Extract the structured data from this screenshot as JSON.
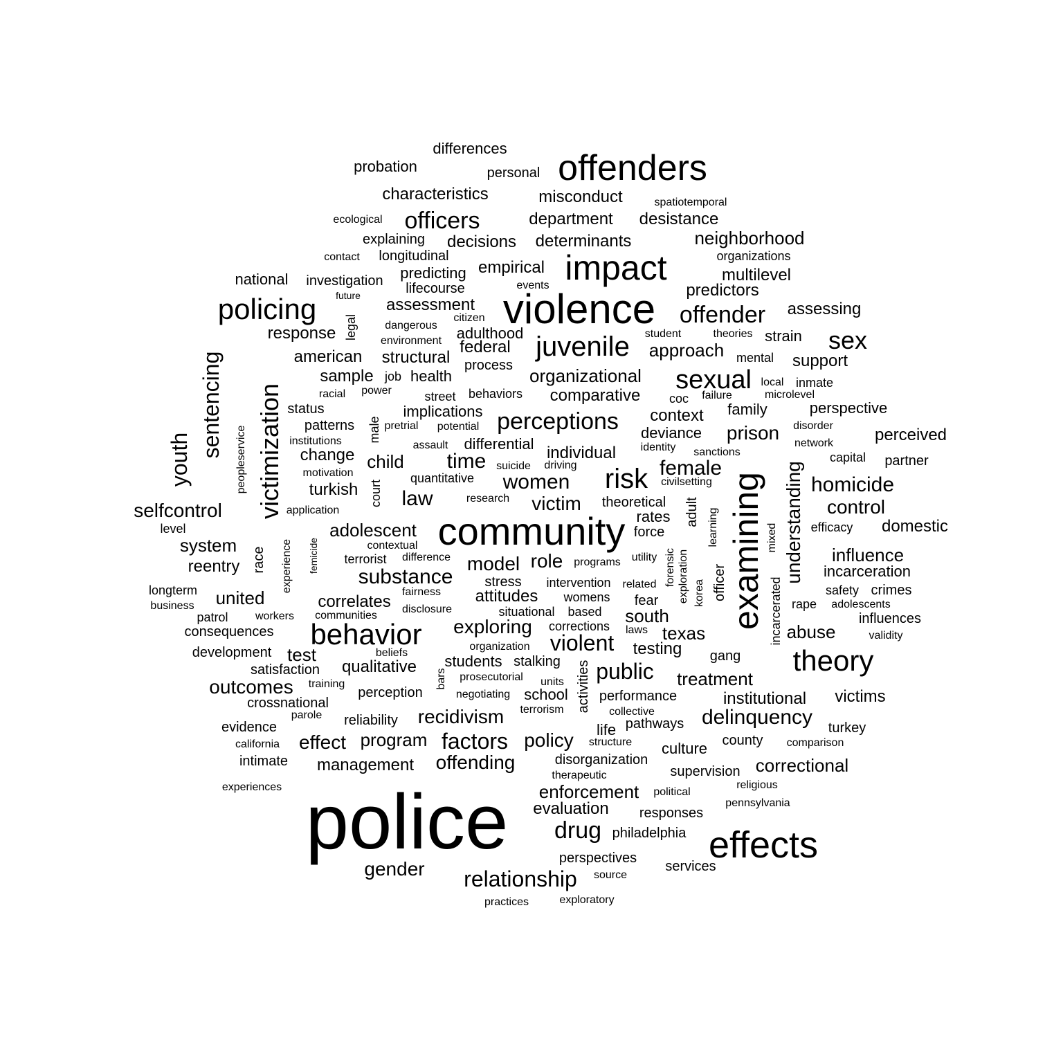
{
  "colors": {
    "background": "#ffffff",
    "text": "#000000"
  },
  "words": [
    {
      "text": "police"
    },
    {
      "text": "community"
    },
    {
      "text": "violence"
    },
    {
      "text": "offenders"
    },
    {
      "text": "examining"
    },
    {
      "text": "effects"
    },
    {
      "text": "impact"
    },
    {
      "text": "behavior"
    },
    {
      "text": "policing"
    },
    {
      "text": "theory"
    },
    {
      "text": "juvenile"
    },
    {
      "text": "victimization"
    },
    {
      "text": "sexual"
    },
    {
      "text": "risk"
    },
    {
      "text": "perceptions"
    },
    {
      "text": "officers"
    },
    {
      "text": "offender"
    },
    {
      "text": "sentencing"
    },
    {
      "text": "youth"
    },
    {
      "text": "sex"
    },
    {
      "text": "factors"
    },
    {
      "text": "drug"
    },
    {
      "text": "relationship"
    },
    {
      "text": "understanding"
    },
    {
      "text": "substance"
    },
    {
      "text": "homicide"
    },
    {
      "text": "delinquency"
    },
    {
      "text": "violent"
    },
    {
      "text": "public"
    },
    {
      "text": "recidivism"
    },
    {
      "text": "policy"
    },
    {
      "text": "offending"
    },
    {
      "text": "exploring"
    },
    {
      "text": "outcomes"
    },
    {
      "text": "model"
    },
    {
      "text": "women"
    },
    {
      "text": "female"
    },
    {
      "text": "prison"
    },
    {
      "text": "law"
    },
    {
      "text": "time"
    },
    {
      "text": "role"
    },
    {
      "text": "enforcement"
    },
    {
      "text": "control"
    },
    {
      "text": "influence"
    },
    {
      "text": "gender"
    },
    {
      "text": "treatment"
    },
    {
      "text": "selfcontrol"
    },
    {
      "text": "adolescent"
    },
    {
      "text": "victim"
    },
    {
      "text": "characteristics"
    },
    {
      "text": "misconduct"
    },
    {
      "text": "department"
    },
    {
      "text": "desistance"
    },
    {
      "text": "neighborhood"
    },
    {
      "text": "decisions"
    },
    {
      "text": "determinants"
    },
    {
      "text": "organizational"
    },
    {
      "text": "comparative"
    },
    {
      "text": "approach"
    },
    {
      "text": "texas"
    },
    {
      "text": "institutional"
    },
    {
      "text": "correctional"
    },
    {
      "text": "victims"
    },
    {
      "text": "abuse"
    },
    {
      "text": "south"
    },
    {
      "text": "individual"
    },
    {
      "text": "assessment"
    },
    {
      "text": "empirical"
    },
    {
      "text": "multilevel"
    },
    {
      "text": "predictors"
    },
    {
      "text": "assessing"
    },
    {
      "text": "strain"
    },
    {
      "text": "support"
    },
    {
      "text": "structural"
    },
    {
      "text": "american"
    },
    {
      "text": "sample"
    },
    {
      "text": "federal"
    },
    {
      "text": "response"
    },
    {
      "text": "system"
    },
    {
      "text": "reentry"
    },
    {
      "text": "united"
    },
    {
      "text": "correlates"
    },
    {
      "text": "attitudes"
    },
    {
      "text": "management"
    },
    {
      "text": "program"
    },
    {
      "text": "effect"
    },
    {
      "text": "evaluation"
    },
    {
      "text": "qualitative"
    },
    {
      "text": "test"
    },
    {
      "text": "testing"
    },
    {
      "text": "child"
    },
    {
      "text": "turkish"
    },
    {
      "text": "change"
    },
    {
      "text": "domestic"
    },
    {
      "text": "perceived"
    },
    {
      "text": "incarceration"
    },
    {
      "text": "context"
    },
    {
      "text": "deviance"
    },
    {
      "text": "family"
    },
    {
      "text": "perspective"
    },
    {
      "text": "differential"
    },
    {
      "text": "implications"
    },
    {
      "text": "health"
    },
    {
      "text": "adulthood"
    },
    {
      "text": "process"
    },
    {
      "text": "predicting"
    },
    {
      "text": "lifecourse"
    },
    {
      "text": "longitudinal"
    },
    {
      "text": "explaining"
    },
    {
      "text": "investigation"
    },
    {
      "text": "national"
    },
    {
      "text": "differences"
    },
    {
      "text": "probation"
    },
    {
      "text": "personal"
    },
    {
      "text": "culture"
    },
    {
      "text": "county"
    },
    {
      "text": "supervision"
    },
    {
      "text": "disorganization"
    },
    {
      "text": "students"
    },
    {
      "text": "perception"
    },
    {
      "text": "crossnational"
    },
    {
      "text": "reliability"
    },
    {
      "text": "evidence"
    },
    {
      "text": "consequences"
    },
    {
      "text": "development"
    },
    {
      "text": "satisfaction"
    },
    {
      "text": "performance"
    },
    {
      "text": "school"
    },
    {
      "text": "stalking"
    },
    {
      "text": "life"
    },
    {
      "text": "pathways"
    },
    {
      "text": "crimes"
    },
    {
      "text": "safety"
    },
    {
      "text": "influences"
    },
    {
      "text": "turkey"
    },
    {
      "text": "services"
    },
    {
      "text": "perspectives"
    },
    {
      "text": "responses"
    },
    {
      "text": "philadelphia"
    },
    {
      "text": "intimate"
    },
    {
      "text": "gang"
    },
    {
      "text": "rates"
    },
    {
      "text": "force"
    },
    {
      "text": "theoretical"
    },
    {
      "text": "partner"
    },
    {
      "text": "capital"
    },
    {
      "text": "status"
    },
    {
      "text": "patterns"
    },
    {
      "text": "efficacy"
    },
    {
      "text": "longterm"
    },
    {
      "text": "business"
    },
    {
      "text": "patrol"
    },
    {
      "text": "workers"
    },
    {
      "text": "communities"
    },
    {
      "text": "fairness"
    },
    {
      "text": "disclosure"
    },
    {
      "text": "stress"
    },
    {
      "text": "intervention"
    },
    {
      "text": "womens"
    },
    {
      "text": "situational"
    },
    {
      "text": "based"
    },
    {
      "text": "corrections"
    },
    {
      "text": "fear"
    },
    {
      "text": "related"
    },
    {
      "text": "laws"
    },
    {
      "text": "organization"
    },
    {
      "text": "beliefs"
    },
    {
      "text": "prosecutorial"
    },
    {
      "text": "units"
    },
    {
      "text": "negotiating"
    },
    {
      "text": "terrorism"
    },
    {
      "text": "collective"
    },
    {
      "text": "structure"
    },
    {
      "text": "therapeutic"
    },
    {
      "text": "political"
    },
    {
      "text": "religious"
    },
    {
      "text": "pennsylvania"
    },
    {
      "text": "comparison"
    },
    {
      "text": "california"
    },
    {
      "text": "parole"
    },
    {
      "text": "training"
    },
    {
      "text": "experiences"
    },
    {
      "text": "source"
    },
    {
      "text": "practices"
    },
    {
      "text": "exploratory"
    },
    {
      "text": "contact"
    },
    {
      "text": "ecological"
    },
    {
      "text": "spatiotemporal"
    },
    {
      "text": "organizations"
    },
    {
      "text": "events"
    },
    {
      "text": "future"
    },
    {
      "text": "citizen"
    },
    {
      "text": "dangerous"
    },
    {
      "text": "environment"
    },
    {
      "text": "student"
    },
    {
      "text": "theories"
    },
    {
      "text": "mental"
    },
    {
      "text": "job"
    },
    {
      "text": "racial"
    },
    {
      "text": "power"
    },
    {
      "text": "street"
    },
    {
      "text": "behaviors"
    },
    {
      "text": "local"
    },
    {
      "text": "inmate"
    },
    {
      "text": "coc"
    },
    {
      "text": "failure"
    },
    {
      "text": "microlevel"
    },
    {
      "text": "pretrial"
    },
    {
      "text": "potential"
    },
    {
      "text": "disorder"
    },
    {
      "text": "network"
    },
    {
      "text": "institutions"
    },
    {
      "text": "assault"
    },
    {
      "text": "identity"
    },
    {
      "text": "sanctions"
    },
    {
      "text": "motivation"
    },
    {
      "text": "quantitative"
    },
    {
      "text": "suicide"
    },
    {
      "text": "driving"
    },
    {
      "text": "civilsetting"
    },
    {
      "text": "research"
    },
    {
      "text": "application"
    },
    {
      "text": "level"
    },
    {
      "text": "contextual"
    },
    {
      "text": "terrorist"
    },
    {
      "text": "difference"
    },
    {
      "text": "programs"
    },
    {
      "text": "utility"
    },
    {
      "text": "rape"
    },
    {
      "text": "adolescents"
    },
    {
      "text": "validity"
    },
    {
      "text": "legal"
    },
    {
      "text": "male"
    },
    {
      "text": "court"
    },
    {
      "text": "peopleservice"
    },
    {
      "text": "race"
    },
    {
      "text": "experience"
    },
    {
      "text": "femicide"
    },
    {
      "text": "adult"
    },
    {
      "text": "learning"
    },
    {
      "text": "officer"
    },
    {
      "text": "forensic"
    },
    {
      "text": "exploration"
    },
    {
      "text": "korea"
    },
    {
      "text": "mixed"
    },
    {
      "text": "incarcerated"
    },
    {
      "text": "activities"
    },
    {
      "text": "bars"
    }
  ]
}
